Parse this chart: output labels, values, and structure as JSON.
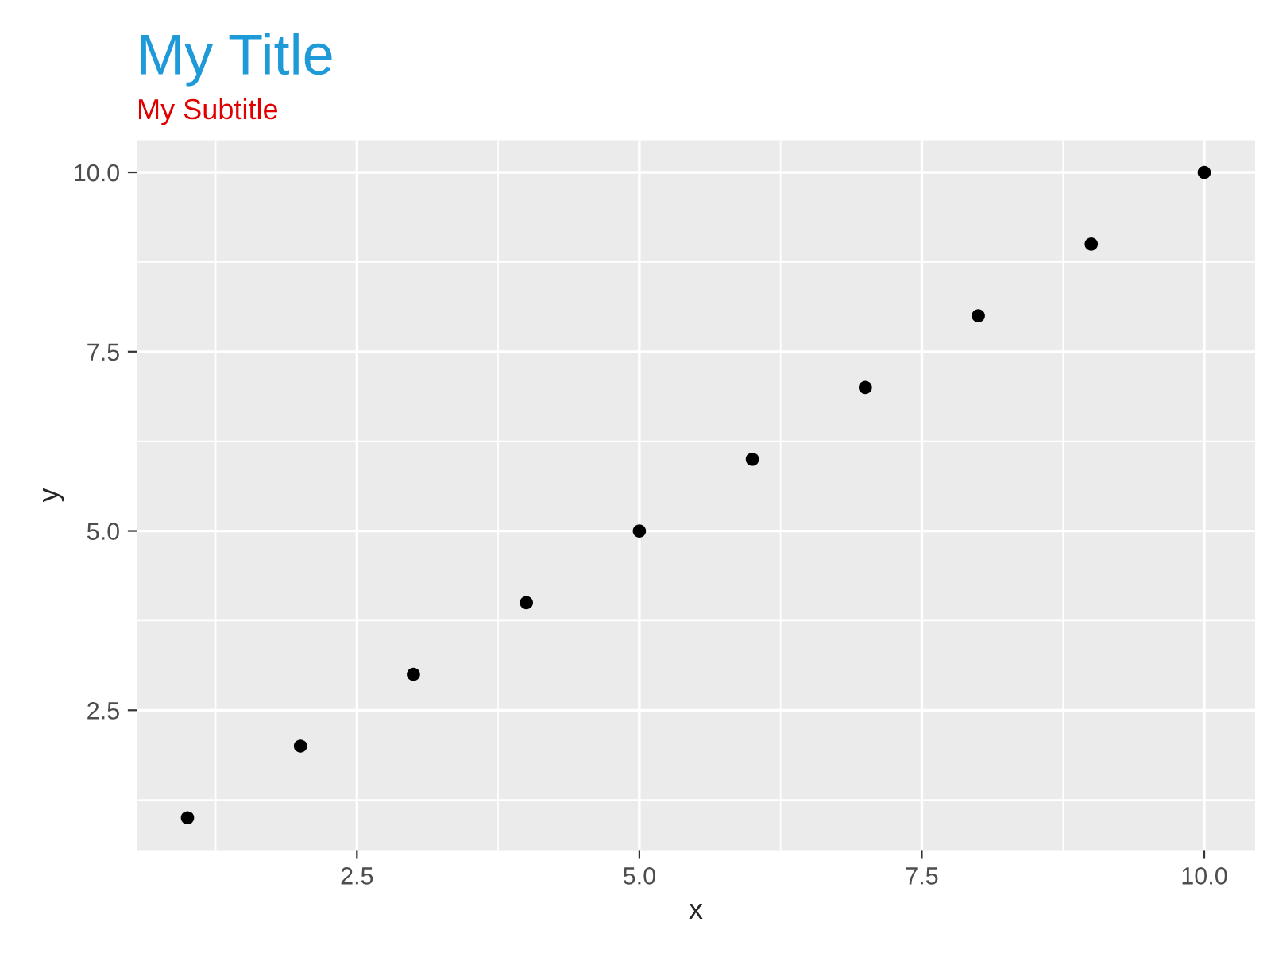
{
  "chart_data": {
    "type": "scatter",
    "title": "My Title",
    "subtitle": "My Subtitle",
    "xlabel": "x",
    "ylabel": "y",
    "x": [
      1,
      2,
      3,
      4,
      5,
      6,
      7,
      8,
      9,
      10
    ],
    "series": [
      {
        "color": "#000000",
        "values": [
          1,
          2,
          3,
          4,
          5,
          6,
          7,
          8,
          9,
          10
        ]
      }
    ],
    "xlim": [
      0.55,
      10.45
    ],
    "ylim": [
      0.55,
      10.45
    ],
    "xticks": [
      {
        "value": 2.5,
        "label": "2.5"
      },
      {
        "value": 5,
        "label": "5.0"
      },
      {
        "value": 7.5,
        "label": "7.5"
      },
      {
        "value": 10,
        "label": "10.0"
      }
    ],
    "yticks": [
      {
        "value": 2.5,
        "label": "2.5"
      },
      {
        "value": 5,
        "label": "5.0"
      },
      {
        "value": 7.5,
        "label": "7.5"
      },
      {
        "value": 10,
        "label": "10.0"
      }
    ],
    "grid": true,
    "marker": "circle",
    "legend": false
  }
}
